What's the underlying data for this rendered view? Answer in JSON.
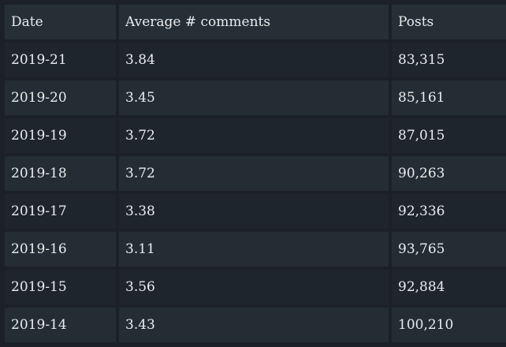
{
  "table": {
    "headers": [
      "Date",
      "Average # comments",
      "Posts"
    ],
    "rows": [
      [
        "2019-21",
        "3.84",
        "83,315"
      ],
      [
        "2019-20",
        "3.45",
        "85,161"
      ],
      [
        "2019-19",
        "3.72",
        "87,015"
      ],
      [
        "2019-18",
        "3.72",
        "90,263"
      ],
      [
        "2019-17",
        "3.38",
        "92,336"
      ],
      [
        "2019-16",
        "3.11",
        "93,765"
      ],
      [
        "2019-15",
        "3.56",
        "92,884"
      ],
      [
        "2019-14",
        "3.43",
        "100,210"
      ]
    ]
  }
}
